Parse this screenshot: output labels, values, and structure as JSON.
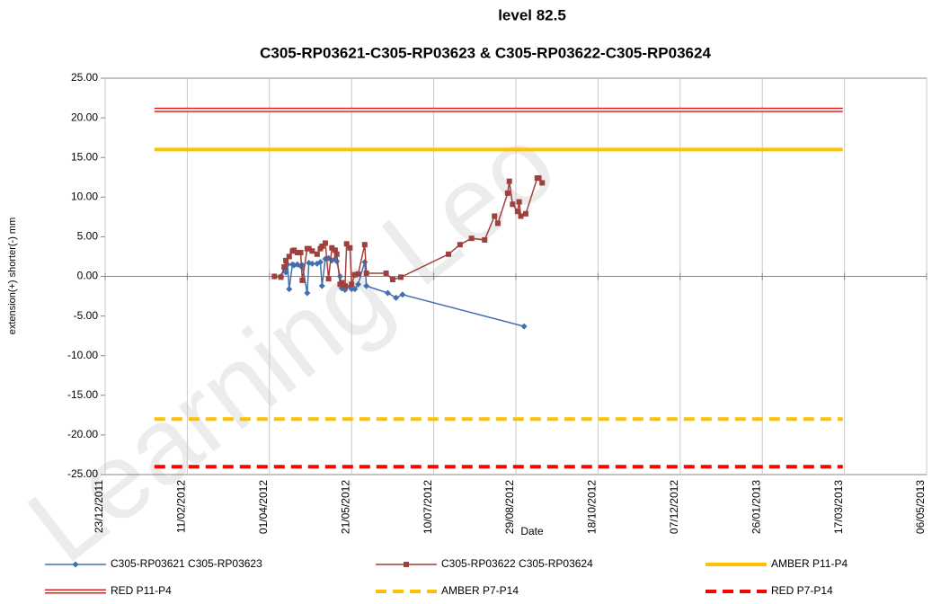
{
  "chart_data": {
    "type": "line",
    "title": "level 82.5",
    "subtitle": "C305-RP03621-C305-RP03623 & C305-RP03622-C305-RP03624",
    "watermark": "Learning Leo",
    "x_label": "Date",
    "y_label": "extension(+) shorter(-) mm",
    "xlim": [
      "2011-12-23",
      "2013-05-06"
    ],
    "xticks": [
      {
        "value": "2011-12-23",
        "label": "23/12/2011"
      },
      {
        "value": "2012-02-11",
        "label": "11/02/2012"
      },
      {
        "value": "2012-04-01",
        "label": "01/04/2012"
      },
      {
        "value": "2012-05-21",
        "label": "21/05/2012"
      },
      {
        "value": "2012-07-10",
        "label": "10/07/2012"
      },
      {
        "value": "2012-08-29",
        "label": "29/08/2012"
      },
      {
        "value": "2012-10-18",
        "label": "18/10/2012"
      },
      {
        "value": "2012-12-07",
        "label": "07/12/2012"
      },
      {
        "value": "2013-01-26",
        "label": "26/01/2013"
      },
      {
        "value": "2013-03-17",
        "label": "17/03/2013"
      },
      {
        "value": "2013-05-06",
        "label": "06/05/2013"
      }
    ],
    "ylim": [
      -25,
      25
    ],
    "yticks": [
      {
        "value": 25,
        "label": "25.00"
      },
      {
        "value": 20,
        "label": "20.00"
      },
      {
        "value": 15,
        "label": "15.00"
      },
      {
        "value": 10,
        "label": "10.00"
      },
      {
        "value": 5,
        "label": "5.00"
      },
      {
        "value": 0,
        "label": "0.00"
      },
      {
        "value": -5,
        "label": "-5.00"
      },
      {
        "value": -10,
        "label": "-10.00"
      },
      {
        "value": -15,
        "label": "-15.00"
      },
      {
        "value": -20,
        "label": "-20.00"
      },
      {
        "value": -25,
        "label": "-25.00"
      }
    ],
    "grid": true,
    "legend": "bottom",
    "series": [
      {
        "name": "C305-RP03621 C305-RP03623",
        "color": "#4170b0",
        "line_style": "solid",
        "marker": "diamond",
        "x": [
          "2012-04-04",
          "2012-04-08",
          "2012-04-10",
          "2012-04-11",
          "2012-04-12",
          "2012-04-13",
          "2012-04-15",
          "2012-04-16",
          "2012-04-18",
          "2012-04-20",
          "2012-04-21",
          "2012-04-24",
          "2012-04-25",
          "2012-04-27",
          "2012-04-30",
          "2012-05-02",
          "2012-05-03",
          "2012-05-05",
          "2012-05-07",
          "2012-05-09",
          "2012-05-11",
          "2012-05-12",
          "2012-05-14",
          "2012-05-15",
          "2012-05-17",
          "2012-05-18",
          "2012-05-20",
          "2012-05-21",
          "2012-05-23",
          "2012-05-25",
          "2012-05-29",
          "2012-05-30",
          "2012-06-12",
          "2012-06-17",
          "2012-06-21",
          "2012-09-03"
        ],
        "values": [
          0,
          0,
          1.0,
          0.5,
          1.5,
          -1.6,
          1.5,
          1.4,
          1.5,
          1.3,
          1.4,
          -2.1,
          1.7,
          1.6,
          1.6,
          1.8,
          -1.2,
          2.2,
          2.3,
          2.0,
          2.2,
          1.9,
          0.0,
          -1.5,
          -1.7,
          -1.3,
          -1.3,
          -1.6,
          -1.6,
          -1.0,
          1.8,
          -1.2,
          -2.1,
          -2.7,
          -2.3,
          -6.3
        ]
      },
      {
        "name": "C305-RP03622 C305-RP03624",
        "color": "#a0403c",
        "line_style": "solid",
        "marker": "square",
        "x": [
          "2012-04-04",
          "2012-04-08",
          "2012-04-10",
          "2012-04-11",
          "2012-04-13",
          "2012-04-15",
          "2012-04-16",
          "2012-04-18",
          "2012-04-20",
          "2012-04-21",
          "2012-04-24",
          "2012-04-25",
          "2012-04-27",
          "2012-04-30",
          "2012-05-02",
          "2012-05-03",
          "2012-05-05",
          "2012-05-07",
          "2012-05-09",
          "2012-05-11",
          "2012-05-12",
          "2012-05-14",
          "2012-05-15",
          "2012-05-17",
          "2012-05-18",
          "2012-05-20",
          "2012-05-21",
          "2012-05-23",
          "2012-05-25",
          "2012-05-29",
          "2012-05-30",
          "2012-06-11",
          "2012-06-15",
          "2012-06-20",
          "2012-07-19",
          "2012-07-26",
          "2012-08-02",
          "2012-08-10",
          "2012-08-16",
          "2012-08-18",
          "2012-08-24",
          "2012-08-25",
          "2012-08-27",
          "2012-08-30",
          "2012-08-31",
          "2012-09-01",
          "2012-09-04",
          "2012-09-11",
          "2012-09-12",
          "2012-09-14"
        ],
        "values": [
          0,
          -0.1,
          1.2,
          2.0,
          2.5,
          3.2,
          3.3,
          3.0,
          3.0,
          -0.5,
          3.5,
          3.5,
          3.2,
          2.8,
          3.5,
          3.8,
          4.2,
          -0.3,
          3.6,
          3.3,
          2.8,
          -1.0,
          -0.8,
          -1.2,
          4.1,
          3.6,
          -1.0,
          0.2,
          0.3,
          4.0,
          0.4,
          0.4,
          -0.4,
          -0.1,
          2.8,
          4.0,
          4.8,
          4.6,
          7.6,
          6.7,
          10.5,
          12.0,
          9.1,
          8.2,
          9.4,
          7.6,
          7.9,
          12.4,
          12.4,
          11.8
        ]
      },
      {
        "name": "AMBER P11-P4",
        "color": "#ffc000",
        "line_style": "solid",
        "marker": "none",
        "x": [
          "2012-01-22",
          "2013-03-16"
        ],
        "values": [
          16,
          16
        ]
      },
      {
        "name": "RED P11-P4",
        "color": "#e8201c",
        "line_style": "double",
        "marker": "none",
        "x": [
          "2012-01-22",
          "2013-03-16"
        ],
        "values": [
          21,
          21
        ]
      },
      {
        "name": "AMBER P7-P14",
        "color": "#ffc000",
        "line_style": "dashed",
        "marker": "none",
        "x": [
          "2012-01-22",
          "2013-03-16"
        ],
        "values": [
          -18,
          -18
        ]
      },
      {
        "name": "RED P7-P14",
        "color": "#ff0000",
        "line_style": "dashed",
        "marker": "none",
        "x": [
          "2012-01-22",
          "2013-03-16"
        ],
        "values": [
          -24,
          -24
        ]
      }
    ]
  }
}
